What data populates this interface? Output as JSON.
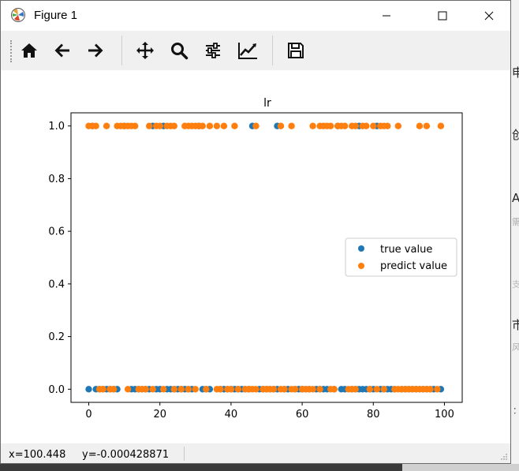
{
  "window": {
    "title": "Figure 1",
    "controls": [
      "minimize-icon",
      "maximize-icon",
      "close-icon"
    ]
  },
  "toolbar": {
    "buttons": [
      "home-icon",
      "back-arrow-icon",
      "forward-arrow-icon",
      "pan-icon",
      "zoom-icon",
      "configure-subplots-icon",
      "edit-axis-icon",
      "save-icon"
    ]
  },
  "status": {
    "coords": "x=100.448     y=-0.000428871"
  },
  "background_fragments": [
    "申",
    "创",
    "A",
    "需",
    "支",
    "市",
    "风",
    "："
  ],
  "chart_data": {
    "type": "scatter",
    "title": "lr",
    "xlabel": "",
    "ylabel": "",
    "xlim": [
      -5,
      105
    ],
    "ylim": [
      -0.05,
      1.05
    ],
    "x_ticks": [
      "0",
      "20",
      "40",
      "60",
      "80",
      "100"
    ],
    "y_ticks": [
      "0.0",
      "0.2",
      "0.4",
      "0.6",
      "0.8",
      "1.0"
    ],
    "grid": false,
    "legend_position": "center right",
    "series": [
      {
        "name": "true value",
        "color": "#1f77b4",
        "points": [
          [
            0,
            0
          ],
          [
            2,
            0
          ],
          [
            3,
            0
          ],
          [
            4,
            0
          ],
          [
            5,
            0
          ],
          [
            6,
            0
          ],
          [
            7,
            0
          ],
          [
            8,
            0
          ],
          [
            12,
            0
          ],
          [
            13,
            0
          ],
          [
            14,
            0
          ],
          [
            15,
            0
          ],
          [
            16,
            0
          ],
          [
            17,
            0
          ],
          [
            19,
            0
          ],
          [
            20,
            0
          ],
          [
            22,
            0
          ],
          [
            23,
            0
          ],
          [
            24,
            0
          ],
          [
            25,
            0
          ],
          [
            26,
            0
          ],
          [
            27,
            0
          ],
          [
            28,
            0
          ],
          [
            29,
            0
          ],
          [
            32,
            0
          ],
          [
            33,
            0
          ],
          [
            34,
            0
          ],
          [
            37,
            0
          ],
          [
            38,
            0
          ],
          [
            39,
            0
          ],
          [
            40,
            0
          ],
          [
            41,
            0
          ],
          [
            42,
            0
          ],
          [
            43,
            0
          ],
          [
            44,
            0
          ],
          [
            45,
            0
          ],
          [
            48,
            0
          ],
          [
            49,
            0
          ],
          [
            50,
            0
          ],
          [
            51,
            0
          ],
          [
            52,
            0
          ],
          [
            53,
            0
          ],
          [
            55,
            0
          ],
          [
            56,
            0
          ],
          [
            58,
            0
          ],
          [
            59,
            0
          ],
          [
            60,
            0
          ],
          [
            61,
            0
          ],
          [
            62,
            0
          ],
          [
            64,
            0
          ],
          [
            65,
            0
          ],
          [
            66,
            0
          ],
          [
            67,
            0
          ],
          [
            69,
            0
          ],
          [
            71,
            0
          ],
          [
            72,
            0
          ],
          [
            74,
            0
          ],
          [
            75,
            0
          ],
          [
            76,
            0
          ],
          [
            77,
            0
          ],
          [
            78,
            0
          ],
          [
            79,
            0
          ],
          [
            80,
            0
          ],
          [
            82,
            0
          ],
          [
            83,
            0
          ],
          [
            84,
            0
          ],
          [
            85,
            0
          ],
          [
            86,
            0
          ],
          [
            88,
            0
          ],
          [
            89,
            0
          ],
          [
            90,
            0
          ],
          [
            91,
            0
          ],
          [
            92,
            0
          ],
          [
            93,
            0
          ],
          [
            94,
            0
          ],
          [
            95,
            0
          ],
          [
            96,
            0
          ],
          [
            97,
            0
          ],
          [
            99,
            0
          ],
          [
            1,
            1
          ],
          [
            10,
            1
          ],
          [
            18,
            1
          ],
          [
            21,
            1
          ],
          [
            31,
            1
          ],
          [
            46,
            1
          ],
          [
            53,
            1
          ],
          [
            70,
            1
          ],
          [
            76,
            1
          ],
          [
            81,
            1
          ]
        ]
      },
      {
        "name": "predict value",
        "color": "#ff7f0e",
        "points": [
          [
            0,
            1
          ],
          [
            1,
            1
          ],
          [
            2,
            1
          ],
          [
            5,
            1
          ],
          [
            8,
            1
          ],
          [
            9,
            1
          ],
          [
            10,
            1
          ],
          [
            11,
            1
          ],
          [
            12,
            1
          ],
          [
            13,
            1
          ],
          [
            17,
            1
          ],
          [
            19,
            1
          ],
          [
            20,
            1
          ],
          [
            22,
            1
          ],
          [
            23,
            1
          ],
          [
            24,
            1
          ],
          [
            27,
            1
          ],
          [
            28,
            1
          ],
          [
            29,
            1
          ],
          [
            30,
            1
          ],
          [
            31,
            1
          ],
          [
            32,
            1
          ],
          [
            34,
            1
          ],
          [
            36,
            1
          ],
          [
            38,
            1
          ],
          [
            41,
            1
          ],
          [
            47,
            1
          ],
          [
            54,
            1
          ],
          [
            57,
            1
          ],
          [
            63,
            1
          ],
          [
            65,
            1
          ],
          [
            66,
            1
          ],
          [
            67,
            1
          ],
          [
            68,
            1
          ],
          [
            70,
            1
          ],
          [
            71,
            1
          ],
          [
            72,
            1
          ],
          [
            74,
            1
          ],
          [
            75,
            1
          ],
          [
            77,
            1
          ],
          [
            78,
            1
          ],
          [
            80,
            1
          ],
          [
            82,
            1
          ],
          [
            83,
            1
          ],
          [
            84,
            1
          ],
          [
            87,
            1
          ],
          [
            93,
            1
          ],
          [
            95,
            1
          ],
          [
            99,
            1
          ],
          [
            3,
            0
          ],
          [
            4,
            0
          ],
          [
            6,
            0
          ],
          [
            7,
            0
          ],
          [
            11,
            0
          ],
          [
            14,
            0
          ],
          [
            15,
            0
          ],
          [
            16,
            0
          ],
          [
            18,
            0
          ],
          [
            21,
            0
          ],
          [
            24,
            0
          ],
          [
            26,
            0
          ],
          [
            28,
            0
          ],
          [
            30,
            0
          ],
          [
            33,
            0
          ],
          [
            36,
            0
          ],
          [
            37,
            0
          ],
          [
            39,
            0
          ],
          [
            40,
            0
          ],
          [
            42,
            0
          ],
          [
            44,
            0
          ],
          [
            45,
            0
          ],
          [
            46,
            0
          ],
          [
            47,
            0
          ],
          [
            49,
            0
          ],
          [
            50,
            0
          ],
          [
            51,
            0
          ],
          [
            52,
            0
          ],
          [
            54,
            0
          ],
          [
            55,
            0
          ],
          [
            57,
            0
          ],
          [
            58,
            0
          ],
          [
            60,
            0
          ],
          [
            61,
            0
          ],
          [
            62,
            0
          ],
          [
            63,
            0
          ],
          [
            65,
            0
          ],
          [
            68,
            0
          ],
          [
            69,
            0
          ],
          [
            73,
            0
          ],
          [
            74,
            0
          ],
          [
            75,
            0
          ],
          [
            79,
            0
          ],
          [
            81,
            0
          ],
          [
            83,
            0
          ],
          [
            86,
            0
          ],
          [
            87,
            0
          ],
          [
            88,
            0
          ],
          [
            89,
            0
          ],
          [
            90,
            0
          ],
          [
            91,
            0
          ],
          [
            92,
            0
          ],
          [
            93,
            0
          ],
          [
            94,
            0
          ],
          [
            95,
            0
          ],
          [
            96,
            0
          ],
          [
            98,
            0
          ]
        ]
      }
    ]
  }
}
